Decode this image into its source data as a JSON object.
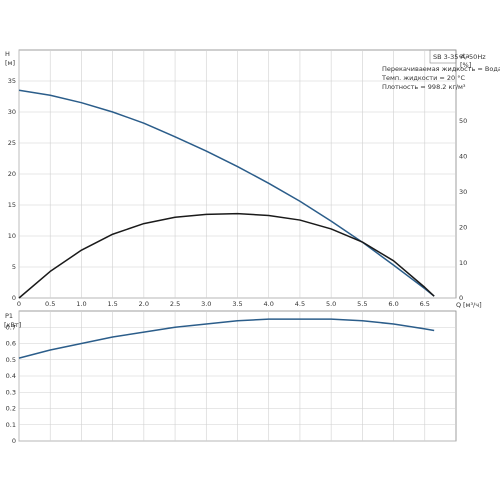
{
  "chart_data": [
    {
      "type": "line",
      "title": "SB 3-35 A, 50Hz",
      "notes": [
        "Перекачиваемая жидкость = Вода",
        "Темп. жидкости = 20 °C",
        "Плотность = 998.2 кг/м³"
      ],
      "ylabel": "H",
      "yunit": "[м]",
      "y2label": "eta",
      "y2unit": "[%]",
      "xlabel": "Q",
      "xunit": "[м³/ч]",
      "xlim": [
        0,
        7
      ],
      "ylim": [
        0,
        40
      ],
      "y2lim": [
        0,
        70
      ],
      "xticks": [
        "0",
        "0.5",
        "1.0",
        "1.5",
        "2.0",
        "2.5",
        "3.0",
        "3.5",
        "4.0",
        "4.5",
        "5.0",
        "5.5",
        "6.0",
        "6.5"
      ],
      "yticks": [
        "0",
        "5",
        "10",
        "15",
        "20",
        "25",
        "30",
        "35"
      ],
      "y2ticks": [
        "0",
        "10",
        "20",
        "30",
        "40",
        "50"
      ],
      "grid": true,
      "series": [
        {
          "name": "",
          "axis": "left",
          "color": "#2b5d8a",
          "x": [
            0,
            0.5,
            1.0,
            1.5,
            2.0,
            2.5,
            3.0,
            3.5,
            4.0,
            4.5,
            5.0,
            5.5,
            6.0,
            6.5,
            6.65
          ],
          "y": [
            33.5,
            32.7,
            31.5,
            30.0,
            28.2,
            26.0,
            23.7,
            21.2,
            18.5,
            15.6,
            12.4,
            9.0,
            5.3,
            1.5,
            0.3
          ]
        },
        {
          "name": "",
          "axis": "right",
          "color": "#1a1a1a",
          "x": [
            0,
            0.5,
            1.0,
            1.5,
            2.0,
            2.5,
            3.0,
            3.5,
            4.0,
            4.5,
            5.0,
            5.5,
            6.0,
            6.5,
            6.65
          ],
          "y": [
            0,
            7.5,
            13.5,
            18.0,
            21.0,
            22.8,
            23.6,
            23.8,
            23.3,
            22.0,
            19.5,
            15.8,
            10.5,
            3.0,
            0.5
          ]
        }
      ]
    },
    {
      "type": "line",
      "ylabel": "P1",
      "yunit": "[кВт]",
      "xlim": [
        0,
        7
      ],
      "ylim": [
        0,
        0.8
      ],
      "yticks": [
        "0",
        "0.1",
        "0.2",
        "0.3",
        "0.4",
        "0.5",
        "0.6",
        "0.7"
      ],
      "grid": true,
      "series": [
        {
          "name": "",
          "color": "#2b5d8a",
          "x": [
            0,
            0.5,
            1.0,
            1.5,
            2.0,
            2.5,
            3.0,
            3.5,
            4.0,
            4.5,
            5.0,
            5.5,
            6.0,
            6.5,
            6.65
          ],
          "y": [
            0.51,
            0.56,
            0.6,
            0.64,
            0.67,
            0.7,
            0.72,
            0.74,
            0.75,
            0.75,
            0.75,
            0.74,
            0.72,
            0.69,
            0.68
          ]
        }
      ]
    }
  ]
}
